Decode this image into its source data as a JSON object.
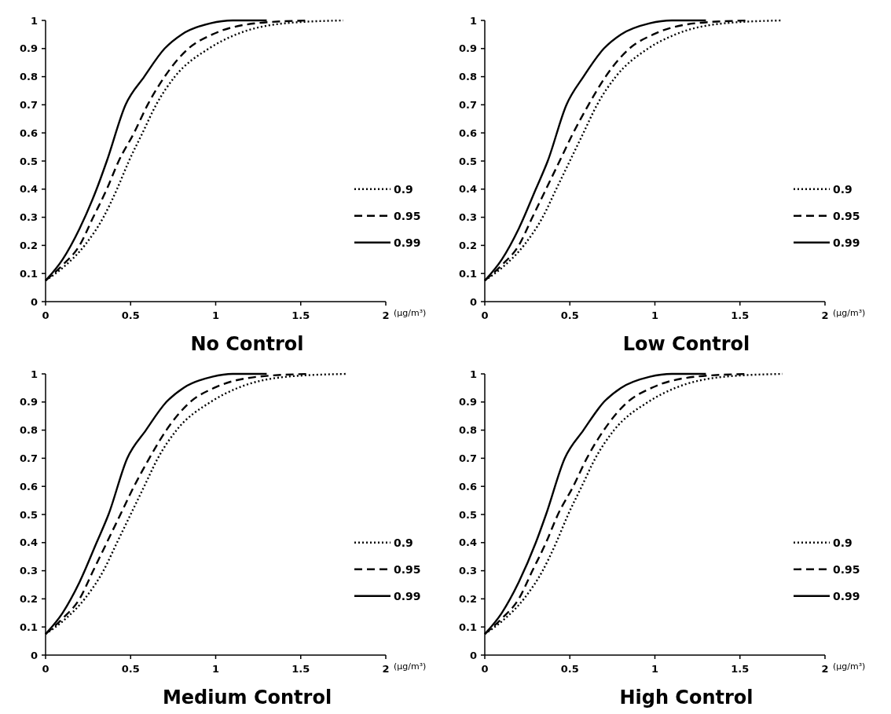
{
  "chart_data": [
    {
      "type": "line",
      "title": "No Control",
      "xlabel": "(μg/m³)",
      "xlim": [
        0,
        2
      ],
      "xticks": [
        0,
        0.5,
        1,
        1.5,
        2
      ],
      "ylim": [
        0,
        1
      ],
      "yticks": [
        0,
        0.1,
        0.2,
        0.3,
        0.4,
        0.5,
        0.6,
        0.7,
        0.8,
        0.9,
        1
      ],
      "legend": "right",
      "grid": false,
      "marker": "none",
      "series": [
        {
          "name": "0.9",
          "color": "#000000",
          "line_style": "dotted",
          "x": [
            0,
            0.1,
            0.23,
            0.34,
            0.42,
            0.49,
            0.57,
            0.65,
            0.76,
            0.96,
            1.12,
            1.41,
            1.75
          ],
          "values": [
            0.075,
            0.12,
            0.2,
            0.3,
            0.4,
            0.5,
            0.6,
            0.7,
            0.8,
            0.9,
            0.95,
            0.99,
            1
          ]
        },
        {
          "name": "0.95",
          "color": "#000000",
          "line_style": "dashed",
          "x": [
            0,
            0.1,
            0.2,
            0.28,
            0.36,
            0.43,
            0.52,
            0.6,
            0.7,
            0.84,
            0.98,
            1.24,
            1.55
          ],
          "values": [
            0.075,
            0.13,
            0.2,
            0.3,
            0.4,
            0.5,
            0.6,
            0.7,
            0.8,
            0.9,
            0.95,
            0.99,
            1
          ]
        },
        {
          "name": "0.99",
          "color": "#000000",
          "line_style": "solid",
          "x": [
            0,
            0.1,
            0.2,
            0.3,
            0.36,
            0.47,
            0.58,
            0.7,
            0.8,
            0.97,
            1.1,
            1.3
          ],
          "values": [
            0.075,
            0.15,
            0.26,
            0.4,
            0.5,
            0.7,
            0.8,
            0.9,
            0.95,
            0.99,
            1,
            1
          ]
        }
      ]
    },
    {
      "type": "line",
      "title": "Low Control",
      "xlabel": "(μg/m³)",
      "xlim": [
        0,
        2
      ],
      "xticks": [
        0,
        0.5,
        1,
        1.5,
        2
      ],
      "ylim": [
        0,
        1
      ],
      "yticks": [
        0,
        0.1,
        0.2,
        0.3,
        0.4,
        0.5,
        0.6,
        0.7,
        0.8,
        0.9,
        1
      ],
      "legend": "right",
      "grid": false,
      "marker": "none",
      "series": [
        {
          "name": "0.9",
          "color": "#000000",
          "line_style": "dotted",
          "x": [
            0,
            0.1,
            0.23,
            0.34,
            0.42,
            0.5,
            0.58,
            0.66,
            0.77,
            0.96,
            1.12,
            1.41,
            1.75
          ],
          "values": [
            0.075,
            0.12,
            0.2,
            0.3,
            0.4,
            0.5,
            0.6,
            0.7,
            0.8,
            0.9,
            0.95,
            0.99,
            1
          ]
        },
        {
          "name": "0.95",
          "color": "#000000",
          "line_style": "dashed",
          "x": [
            0,
            0.1,
            0.2,
            0.28,
            0.36,
            0.44,
            0.52,
            0.61,
            0.71,
            0.85,
            0.99,
            1.24,
            1.55
          ],
          "values": [
            0.075,
            0.13,
            0.2,
            0.3,
            0.4,
            0.5,
            0.6,
            0.7,
            0.8,
            0.9,
            0.95,
            0.99,
            1
          ]
        },
        {
          "name": "0.99",
          "color": "#000000",
          "line_style": "solid",
          "x": [
            0,
            0.1,
            0.2,
            0.3,
            0.37,
            0.48,
            0.58,
            0.7,
            0.8,
            0.97,
            1.1,
            1.3
          ],
          "values": [
            0.075,
            0.15,
            0.26,
            0.4,
            0.5,
            0.7,
            0.8,
            0.9,
            0.95,
            0.99,
            1,
            1
          ]
        }
      ]
    },
    {
      "type": "line",
      "title": "Medium Control",
      "xlabel": "(μg/m³)",
      "xlim": [
        0,
        2
      ],
      "xticks": [
        0,
        0.5,
        1,
        1.5,
        2
      ],
      "ylim": [
        0,
        1
      ],
      "yticks": [
        0,
        0.1,
        0.2,
        0.3,
        0.4,
        0.5,
        0.6,
        0.7,
        0.8,
        0.9,
        1
      ],
      "legend": "right",
      "grid": false,
      "marker": "none",
      "series": [
        {
          "name": "0.9",
          "color": "#000000",
          "line_style": "dotted",
          "x": [
            0,
            0.1,
            0.23,
            0.34,
            0.42,
            0.5,
            0.58,
            0.66,
            0.77,
            0.97,
            1.13,
            1.42,
            1.77
          ],
          "values": [
            0.075,
            0.12,
            0.2,
            0.3,
            0.4,
            0.5,
            0.6,
            0.7,
            0.8,
            0.9,
            0.95,
            0.99,
            1
          ]
        },
        {
          "name": "0.95",
          "color": "#000000",
          "line_style": "dashed",
          "x": [
            0,
            0.1,
            0.2,
            0.28,
            0.36,
            0.44,
            0.52,
            0.61,
            0.71,
            0.85,
            0.99,
            1.25,
            1.55
          ],
          "values": [
            0.075,
            0.13,
            0.2,
            0.3,
            0.4,
            0.5,
            0.6,
            0.7,
            0.8,
            0.9,
            0.95,
            0.99,
            1
          ]
        },
        {
          "name": "0.99",
          "color": "#000000",
          "line_style": "solid",
          "x": [
            0,
            0.1,
            0.2,
            0.3,
            0.37,
            0.48,
            0.59,
            0.71,
            0.81,
            0.98,
            1.1,
            1.3
          ],
          "values": [
            0.075,
            0.15,
            0.26,
            0.4,
            0.5,
            0.7,
            0.8,
            0.9,
            0.95,
            0.99,
            1,
            1
          ]
        }
      ]
    },
    {
      "type": "line",
      "title": "High Control",
      "xlabel": "(μg/m³)",
      "xlim": [
        0,
        2
      ],
      "xticks": [
        0,
        0.5,
        1,
        1.5,
        2
      ],
      "ylim": [
        0,
        1
      ],
      "yticks": [
        0,
        0.1,
        0.2,
        0.3,
        0.4,
        0.5,
        0.6,
        0.7,
        0.8,
        0.9,
        1
      ],
      "legend": "right",
      "grid": false,
      "marker": "none",
      "series": [
        {
          "name": "0.9",
          "color": "#000000",
          "line_style": "dotted",
          "x": [
            0,
            0.1,
            0.23,
            0.34,
            0.42,
            0.49,
            0.57,
            0.65,
            0.76,
            0.96,
            1.12,
            1.41,
            1.75
          ],
          "values": [
            0.075,
            0.12,
            0.2,
            0.3,
            0.4,
            0.5,
            0.6,
            0.7,
            0.8,
            0.9,
            0.95,
            0.99,
            1
          ]
        },
        {
          "name": "0.95",
          "color": "#000000",
          "line_style": "dashed",
          "x": [
            0,
            0.1,
            0.2,
            0.28,
            0.36,
            0.43,
            0.52,
            0.6,
            0.7,
            0.84,
            0.98,
            1.24,
            1.55
          ],
          "values": [
            0.075,
            0.13,
            0.2,
            0.3,
            0.4,
            0.5,
            0.6,
            0.7,
            0.8,
            0.9,
            0.95,
            0.99,
            1
          ]
        },
        {
          "name": "0.99",
          "color": "#000000",
          "line_style": "solid",
          "x": [
            0,
            0.1,
            0.2,
            0.3,
            0.36,
            0.47,
            0.58,
            0.7,
            0.8,
            0.97,
            1.1,
            1.3
          ],
          "values": [
            0.075,
            0.15,
            0.26,
            0.4,
            0.5,
            0.7,
            0.8,
            0.9,
            0.95,
            0.99,
            1,
            1
          ]
        }
      ]
    }
  ]
}
